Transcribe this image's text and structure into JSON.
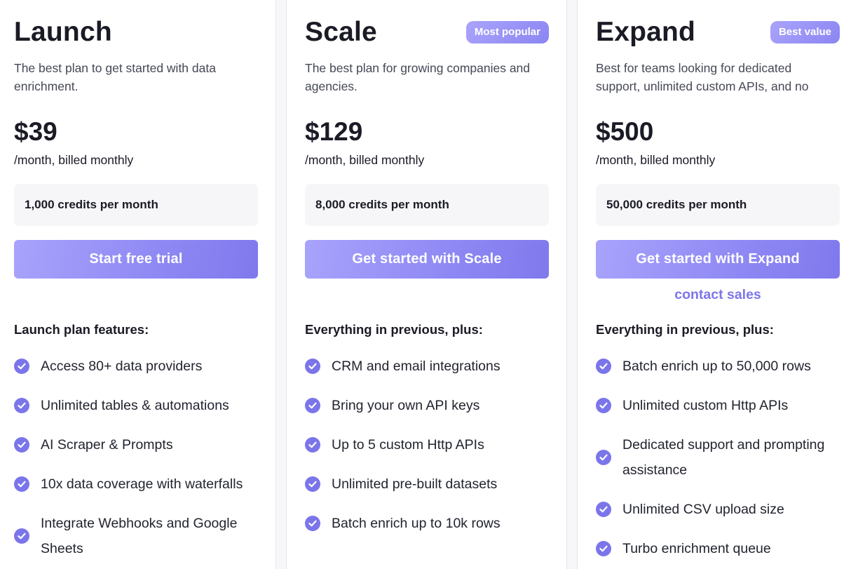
{
  "plans": [
    {
      "name": "Launch",
      "badge": "",
      "description": "The best plan to get started with data enrichment.",
      "price": "$39",
      "billing": "/month, billed monthly",
      "credits": "1,000 credits per month",
      "cta_label": "Start free trial",
      "secondary_link": "",
      "features_heading": "Launch plan features:",
      "features": [
        "Access 80+ data providers",
        "Unlimited tables & automations",
        "AI Scraper & Prompts",
        "10x data coverage with waterfalls",
        "Integrate Webhooks and Google Sheets"
      ]
    },
    {
      "name": "Scale",
      "badge": "Most popular",
      "description": "The best plan for growing companies and agencies.",
      "price": "$129",
      "billing": "/month, billed monthly",
      "credits": "8,000 credits per month",
      "cta_label": "Get started with Scale",
      "secondary_link": "",
      "features_heading": "Everything in previous, plus:",
      "features": [
        "CRM and email integrations",
        "Bring your own API keys",
        "Up to 5 custom Http APIs",
        "Unlimited pre-built datasets",
        "Batch enrich up to 10k rows"
      ]
    },
    {
      "name": "Expand",
      "badge": "Best value",
      "description": "Best for teams looking for dedicated support, unlimited custom APIs, and no",
      "price": "$500",
      "billing": "/month, billed monthly",
      "credits": "50,000 credits per month",
      "cta_label": "Get started with Expand",
      "secondary_link": "contact sales",
      "features_heading": "Everything in previous, plus:",
      "features": [
        "Batch enrich up to 50,000 rows",
        "Unlimited custom Http APIs",
        "Dedicated support and prompting assistance",
        "Unlimited CSV upload size",
        "Turbo enrichment queue"
      ]
    }
  ],
  "colors": {
    "accent": "#7b75ea",
    "button_gradient_start": "#a8a3fb",
    "button_gradient_end": "#7f79ed",
    "credits_background": "#f6f6f8"
  },
  "icons": {
    "feature_check": "check-circle-icon"
  }
}
